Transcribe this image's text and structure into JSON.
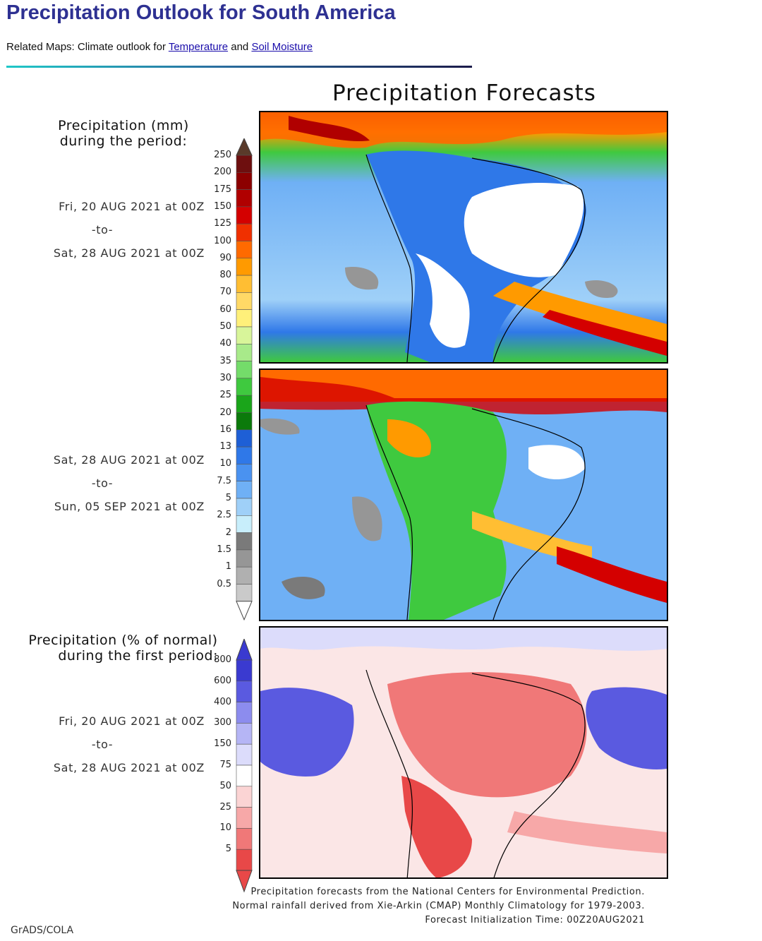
{
  "header": {
    "title": "Precipitation Outlook for South America",
    "related_prefix": "Related Maps: Climate outlook for",
    "link_temperature": "Temperature",
    "link_and": "and",
    "link_soil": "Soil Moisture"
  },
  "figure": {
    "title": "Precipitation Forecasts",
    "legend1_line1": "Precipitation (mm)",
    "legend1_line2": "during the period:",
    "period1": {
      "start": "Fri, 20 AUG 2021 at 00Z",
      "to": "-to-",
      "end": "Sat, 28 AUG 2021 at 00Z"
    },
    "period2": {
      "start": "Sat, 28 AUG 2021 at 00Z",
      "to": "-to-",
      "end": "Sun, 05 SEP 2021 at 00Z"
    },
    "legend2_line1": "Precipitation (% of normal)",
    "legend2_line2": "during the first period:",
    "period3": {
      "start": "Fri, 20 AUG 2021 at 00Z",
      "to": "-to-",
      "end": "Sat, 28 AUG 2021 at 00Z"
    },
    "mm_scale": [
      "250",
      "200",
      "175",
      "150",
      "125",
      "100",
      "90",
      "80",
      "70",
      "60",
      "50",
      "40",
      "35",
      "30",
      "25",
      "20",
      "16",
      "13",
      "10",
      "7.5",
      "5",
      "2.5",
      "2",
      "1.5",
      "1",
      "0.5"
    ],
    "mm_colors": [
      "#6e0f0f",
      "#8c0000",
      "#b00000",
      "#d40000",
      "#f03000",
      "#ff6a00",
      "#ff9a00",
      "#ffbe33",
      "#ffd966",
      "#fff07a",
      "#d8f59a",
      "#a8ea8a",
      "#74dc6a",
      "#3fc93f",
      "#1aa51a",
      "#0b7a0b",
      "#1e5fd6",
      "#2f78e8",
      "#4a92f0",
      "#6fb0f5",
      "#9fd0f8",
      "#c8eefb",
      "#7a7a7a",
      "#969696",
      "#b0b0b0",
      "#cacaca"
    ],
    "pct_scale": [
      "800",
      "600",
      "400",
      "300",
      "150",
      "75",
      "50",
      "25",
      "10",
      "5"
    ],
    "pct_colors": [
      "#3a3ad0",
      "#5a5ae0",
      "#8c8cee",
      "#b5b5f5",
      "#dcdcfb",
      "#ffffff",
      "#fbd4d4",
      "#f7a8a8",
      "#f07878",
      "#e84848"
    ]
  },
  "credits": {
    "line1": "Precipitation forecasts from the National Centers for Environmental Prediction.",
    "line2": "Normal rainfall derived from Xie-Arkin (CMAP) Monthly Climatology for 1979-2003.",
    "line3": "Forecast Initialization Time: 00Z20AUG2021",
    "grads": "GrADS/COLA"
  }
}
